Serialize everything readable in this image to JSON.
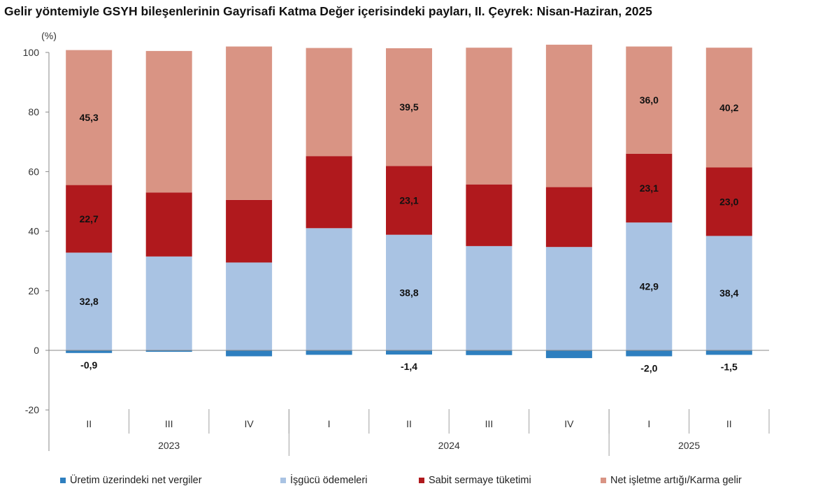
{
  "chart_data": {
    "type": "bar",
    "stacked": true,
    "title": "Gelir yöntemiyle GSYH bileşenlerinin Gayrisafi Katma Değer içerisindeki payları, II. Çeyrek: Nisan-Haziran, 2025",
    "ylabel": "(%)",
    "ylim": [
      -20,
      100
    ],
    "yticks": [
      -20,
      0,
      20,
      40,
      60,
      80,
      100
    ],
    "grid": false,
    "legend_position": "bottom",
    "categories": [
      "II",
      "III",
      "IV",
      "I",
      "II",
      "III",
      "IV",
      "I",
      "II"
    ],
    "year_groups": [
      {
        "label": "2023",
        "count": 3
      },
      {
        "label": "2024",
        "count": 4
      },
      {
        "label": "2025",
        "count": 2
      }
    ],
    "series": [
      {
        "name": "Üretim üzerindeki net vergiler",
        "color": "#2e7fbf",
        "values": [
          -0.9,
          -0.5,
          -2.0,
          -1.5,
          -1.4,
          -1.6,
          -2.6,
          -2.0,
          -1.5
        ]
      },
      {
        "name": "İşgücü ödemeleri",
        "color": "#a9c3e3",
        "values": [
          32.8,
          31.5,
          29.5,
          41.0,
          38.8,
          35.0,
          34.7,
          42.9,
          38.4
        ]
      },
      {
        "name": "Sabit sermaye tüketimi",
        "color": "#b0191d",
        "values": [
          22.7,
          21.5,
          21.0,
          24.2,
          23.1,
          20.7,
          20.1,
          23.1,
          23.0
        ]
      },
      {
        "name": "Net işletme artığı/Karma gelir",
        "color": "#d99484",
        "values": [
          45.3,
          47.5,
          51.5,
          36.3,
          39.5,
          45.9,
          47.8,
          36.0,
          40.2
        ]
      }
    ],
    "data_labels": [
      {
        "text": "-0,9",
        "bar": 0,
        "series": 0
      },
      {
        "text": "32,8",
        "bar": 0,
        "series": 1
      },
      {
        "text": "22,7",
        "bar": 0,
        "series": 2
      },
      {
        "text": "45,3",
        "bar": 0,
        "series": 3
      },
      {
        "text": "-1,4",
        "bar": 4,
        "series": 0
      },
      {
        "text": "38,8",
        "bar": 4,
        "series": 1
      },
      {
        "text": "23,1",
        "bar": 4,
        "series": 2
      },
      {
        "text": "39,5",
        "bar": 4,
        "series": 3
      },
      {
        "text": "-2,0",
        "bar": 7,
        "series": 0
      },
      {
        "text": "42,9",
        "bar": 7,
        "series": 1
      },
      {
        "text": "23,1",
        "bar": 7,
        "series": 2
      },
      {
        "text": "36,0",
        "bar": 7,
        "series": 3
      },
      {
        "text": "-1,5",
        "bar": 8,
        "series": 0
      },
      {
        "text": "38,4",
        "bar": 8,
        "series": 1
      },
      {
        "text": "23,0",
        "bar": 8,
        "series": 2
      },
      {
        "text": "40,2",
        "bar": 8,
        "series": 3
      }
    ]
  }
}
